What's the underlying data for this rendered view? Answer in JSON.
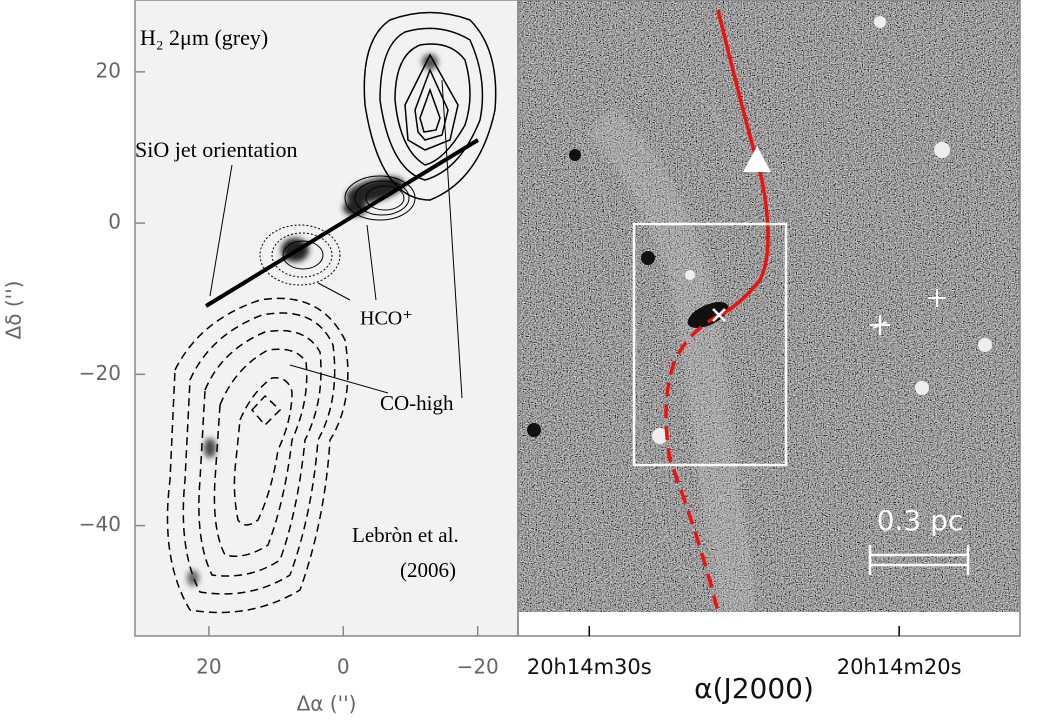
{
  "chart_data": [
    {
      "type": "image",
      "xlabel": "Δα ('')",
      "ylabel": "Δδ ('')",
      "xlim": [
        31,
        -26
      ],
      "ylim": [
        -54.6,
        29.5
      ],
      "xticks": [
        20,
        0,
        {
          "value": -20,
          "label": "−20"
        }
      ],
      "yticks": [
        20,
        0,
        {
          "value": -20,
          "label": "−20"
        },
        {
          "value": -40,
          "label": "−40"
        }
      ],
      "annotations": [
        "H₂ 2μm (grey)",
        "SiO jet orientation",
        "HCO⁺",
        "CO-high",
        "Lebròn et al.",
        "(2006)"
      ]
    },
    {
      "type": "image",
      "xlabel": "α(J2000)",
      "xlim": [
        32.3,
        16.1
      ],
      "xticks": [
        {
          "value": 30,
          "label": "20h14m30s"
        },
        {
          "value": 20,
          "label": "20h14m20s"
        }
      ],
      "annotations": [
        "0.3 pc"
      ]
    }
  ]
}
